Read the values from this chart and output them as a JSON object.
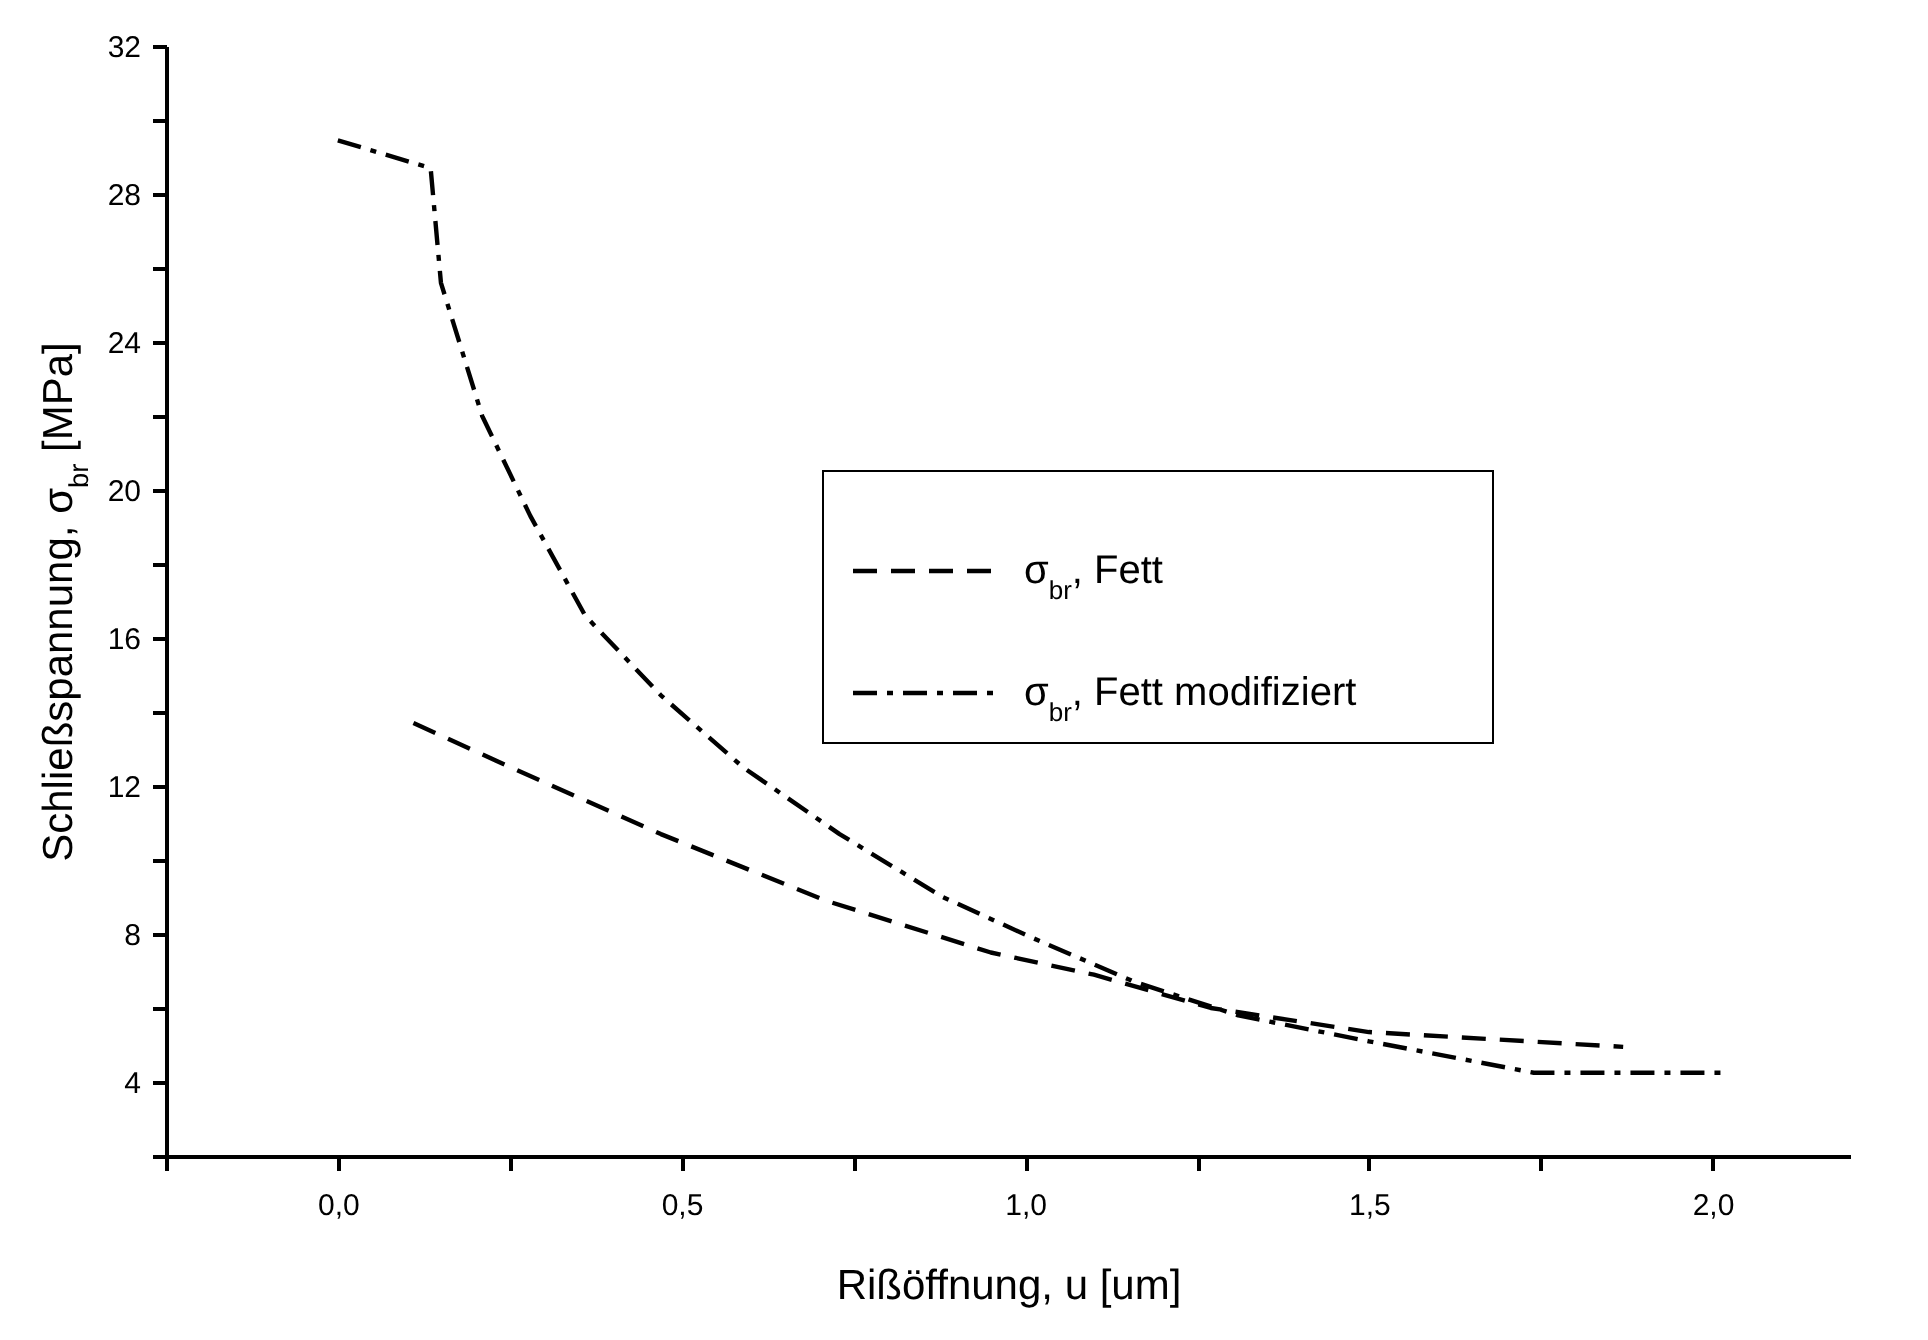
{
  "chart_data": {
    "type": "line",
    "xlabel": "Rißöffnung, u [um]",
    "ylabel": "Schließspannung, σ$_{br}$ [MPa]",
    "xlim": [
      -0.25,
      2.2
    ],
    "xticks": [
      {
        "value": -0.25,
        "label": null
      },
      {
        "value": 0,
        "label": "0,0"
      },
      {
        "value": 0.25,
        "label": null
      },
      {
        "value": 0.5,
        "label": "0,5"
      },
      {
        "value": 0.75,
        "label": null
      },
      {
        "value": 1,
        "label": "1,0"
      },
      {
        "value": 1.25,
        "label": null
      },
      {
        "value": 1.5,
        "label": "1,5"
      },
      {
        "value": 1.75,
        "label": null
      },
      {
        "value": 2,
        "label": "2,0"
      }
    ],
    "ylim": [
      2,
      32
    ],
    "yticks": [
      {
        "value": 2,
        "label": null
      },
      4,
      {
        "value": 6,
        "label": null
      },
      8,
      {
        "value": 10,
        "label": null
      },
      12,
      {
        "value": 14,
        "label": null
      },
      16,
      {
        "value": 18,
        "label": null
      },
      20,
      {
        "value": 22,
        "label": null
      },
      24,
      {
        "value": 26,
        "label": null
      },
      28,
      {
        "value": 30,
        "label": null
      },
      32
    ],
    "grid": false,
    "legend": "center",
    "series": [
      {
        "name": "σ$_{br}$, Fett",
        "color": "#000000",
        "line_style": "dashed",
        "x": [
          0.11,
          0.24,
          0.47,
          0.71,
          0.95,
          1.1,
          1.27,
          1.5,
          1.87
        ],
        "values": [
          13.7,
          12.6,
          10.7,
          8.9,
          7.5,
          6.9,
          6.0,
          5.35,
          4.95
        ]
      },
      {
        "name": "σ$_{br}$, Fett modifiziert",
        "color": "#000000",
        "line_style": "dashdot",
        "x": [
          0,
          0.135,
          0.15,
          0.21,
          0.28,
          0.36,
          0.47,
          0.59,
          0.73,
          0.88,
          1.01,
          1.16,
          1.31,
          1.5,
          1.74,
          2.02
        ],
        "values": [
          29.45,
          28.7,
          25.6,
          22.0,
          19.3,
          16.6,
          14.45,
          12.5,
          10.7,
          9.0,
          7.9,
          6.7,
          5.8,
          5.1,
          4.25,
          4.25
        ]
      }
    ]
  }
}
